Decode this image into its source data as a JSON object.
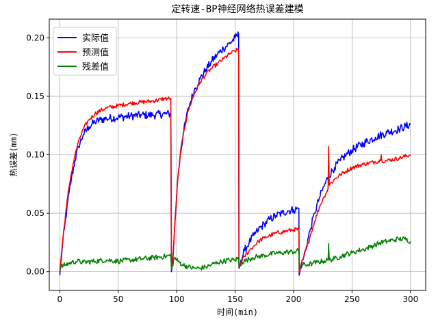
{
  "chart_data": {
    "type": "line",
    "title": "定转速-BP神经网络热误差建模",
    "xlabel": "时间(min)",
    "ylabel": "热误差(mm)",
    "xlim": [
      -9,
      313
    ],
    "ylim": [
      -0.016,
      0.216
    ],
    "xticks": [
      0,
      50,
      100,
      150,
      200,
      250,
      300
    ],
    "yticks": [
      0.0,
      0.05,
      0.1,
      0.15,
      0.2
    ],
    "xtick_labels": [
      "0",
      "50",
      "100",
      "150",
      "200",
      "250",
      "300"
    ],
    "ytick_labels": [
      "0.00",
      "0.05",
      "0.10",
      "0.15",
      "0.20"
    ],
    "grid": true,
    "legend_position": "top-left",
    "series": [
      {
        "name": "实际值",
        "color": "#0000ff",
        "x": [
          0,
          2,
          5,
          8,
          10,
          13,
          16,
          20,
          25,
          30,
          35,
          40,
          50,
          60,
          70,
          80,
          90,
          95,
          95.5,
          97,
          99,
          101,
          103,
          106,
          110,
          115,
          120,
          125,
          130,
          135,
          140,
          145,
          150,
          153,
          153.3,
          155,
          158,
          162,
          166,
          170,
          175,
          180,
          185,
          190,
          195,
          200,
          204.5,
          204.8,
          206,
          208,
          211,
          214,
          218,
          222,
          226,
          230,
          235,
          240,
          245,
          250,
          260,
          270,
          280,
          290,
          300
        ],
        "y": [
          -0.003,
          0.02,
          0.045,
          0.068,
          0.08,
          0.095,
          0.107,
          0.117,
          0.124,
          0.128,
          0.13,
          0.131,
          0.132,
          0.133,
          0.134,
          0.134,
          0.135,
          0.135,
          0.0,
          0.015,
          0.05,
          0.08,
          0.1,
          0.12,
          0.14,
          0.155,
          0.165,
          0.173,
          0.18,
          0.186,
          0.191,
          0.195,
          0.2,
          0.203,
          0.003,
          0.01,
          0.018,
          0.025,
          0.031,
          0.036,
          0.041,
          0.045,
          0.048,
          0.05,
          0.052,
          0.053,
          0.054,
          -0.003,
          0.004,
          0.01,
          0.022,
          0.035,
          0.05,
          0.063,
          0.073,
          0.082,
          0.089,
          0.095,
          0.1,
          0.104,
          0.11,
          0.115,
          0.119,
          0.122,
          0.126
        ]
      },
      {
        "name": "预测值",
        "color": "#ff0000",
        "x": [
          0,
          2,
          5,
          8,
          10,
          13,
          16,
          20,
          25,
          30,
          35,
          40,
          50,
          60,
          70,
          80,
          90,
          95,
          95.5,
          97,
          99,
          101,
          103,
          106,
          110,
          115,
          120,
          125,
          130,
          135,
          140,
          145,
          150,
          153,
          153.3,
          155,
          158,
          162,
          166,
          170,
          175,
          180,
          185,
          190,
          195,
          200,
          204.5,
          204.8,
          206,
          208,
          211,
          214,
          218,
          222,
          226,
          229.5,
          230,
          230.5,
          235,
          240,
          245,
          250,
          260,
          270,
          274.5,
          275,
          275.5,
          280,
          290,
          300
        ],
        "y": [
          0.0,
          0.022,
          0.05,
          0.073,
          0.085,
          0.1,
          0.111,
          0.122,
          0.13,
          0.135,
          0.138,
          0.14,
          0.142,
          0.144,
          0.145,
          0.146,
          0.148,
          0.148,
          0.002,
          0.016,
          0.05,
          0.08,
          0.1,
          0.12,
          0.138,
          0.152,
          0.162,
          0.169,
          0.174,
          0.178,
          0.182,
          0.186,
          0.189,
          0.19,
          0.004,
          0.008,
          0.013,
          0.018,
          0.022,
          0.026,
          0.029,
          0.031,
          0.033,
          0.034,
          0.035,
          0.036,
          0.036,
          0.0,
          0.005,
          0.01,
          0.02,
          0.03,
          0.043,
          0.055,
          0.064,
          0.071,
          0.107,
          0.074,
          0.079,
          0.083,
          0.086,
          0.089,
          0.092,
          0.094,
          0.095,
          0.1,
          0.095,
          0.095,
          0.097,
          0.1
        ]
      },
      {
        "name": "残差值",
        "color": "#008000",
        "x": [
          0,
          5,
          10,
          15,
          20,
          30,
          40,
          50,
          60,
          70,
          80,
          90,
          95,
          95.5,
          98,
          101,
          105,
          110,
          115,
          120,
          125,
          130,
          135,
          140,
          145,
          150,
          153,
          153.3,
          156,
          160,
          165,
          170,
          175,
          180,
          185,
          190,
          195,
          200,
          204.5,
          204.8,
          208,
          212,
          216,
          220,
          225,
          229.5,
          230,
          230.5,
          235,
          240,
          245,
          250,
          255,
          260,
          265,
          270,
          275,
          280,
          285,
          290,
          295,
          300
        ],
        "y": [
          0.004,
          0.006,
          0.008,
          0.009,
          0.008,
          0.009,
          0.01,
          0.009,
          0.01,
          0.011,
          0.012,
          0.013,
          0.014,
          0.002,
          0.012,
          0.009,
          0.006,
          0.004,
          0.003,
          0.003,
          0.004,
          0.006,
          0.008,
          0.009,
          0.01,
          0.01,
          0.012,
          0.005,
          0.008,
          0.01,
          0.012,
          0.013,
          0.014,
          0.015,
          0.016,
          0.016,
          0.017,
          0.017,
          0.018,
          0.004,
          0.006,
          0.006,
          0.007,
          0.008,
          0.009,
          0.01,
          0.024,
          0.01,
          0.011,
          0.013,
          0.015,
          0.016,
          0.018,
          0.019,
          0.021,
          0.023,
          0.025,
          0.026,
          0.027,
          0.028,
          0.028,
          0.026
        ]
      }
    ]
  }
}
